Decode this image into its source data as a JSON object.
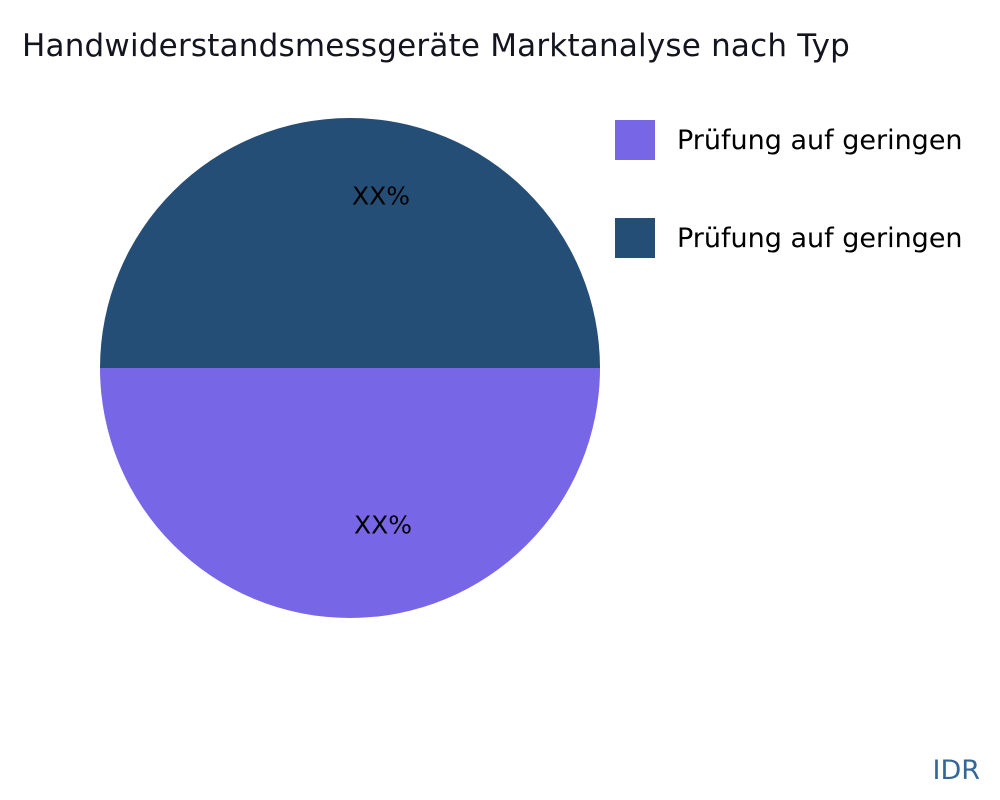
{
  "title": "Handwiderstandsmessgeräte Marktanalyse nach Typ",
  "watermark": "IDR",
  "legend": [
    {
      "label": "Prüfung auf geringen",
      "color": "#7766e6"
    },
    {
      "label": "Prüfung auf geringen",
      "color": "#254e77"
    }
  ],
  "chart_data": {
    "type": "pie",
    "title": "Handwiderstandsmessgeräte Marktanalyse nach Typ",
    "labels": [
      "Prüfung auf geringen",
      "Prüfung auf geringen"
    ],
    "values": [
      50,
      50
    ],
    "colors": [
      "#7766e6",
      "#254e77"
    ],
    "slice_labels": [
      "XX%",
      "XX%"
    ],
    "slice_label_positions": [
      "bottom-half",
      "top-half"
    ],
    "legend_position": "top-right",
    "start_angle_deg": 0,
    "note": "Two equal halves: purple bottom half, dark navy top half; percentage values masked as XX%"
  }
}
